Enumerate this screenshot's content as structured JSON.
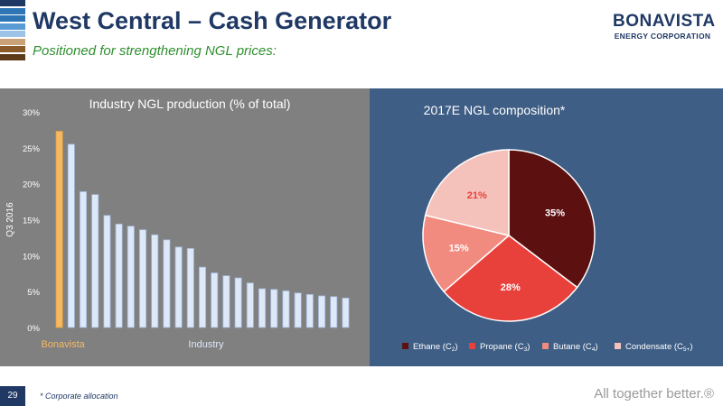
{
  "header": {
    "title": "West Central – Cash Generator",
    "subtitle": "Positioned for strengthening NGL prices:"
  },
  "logo": {
    "brand": "BONAVISTA",
    "sub": "ENERGY CORPORATION",
    "stripe_colors": [
      "#1f3864",
      "#2e75b6",
      "#2e75b6",
      "#5b9bd5",
      "#9dc3e6",
      "#c9a27a",
      "#8b5a2b",
      "#5c3a1a"
    ]
  },
  "footer": {
    "page_number": "29",
    "footnote": "* Corporate allocation",
    "tagline": "All together better.®"
  },
  "chart_data": [
    {
      "type": "bar",
      "title": "Industry NGL production (% of total)",
      "ylabel": "Q3 2016",
      "ylim": [
        0,
        30
      ],
      "yticks": [
        "0%",
        "5%",
        "10%",
        "15%",
        "20%",
        "25%",
        "30%"
      ],
      "grid": false,
      "group_labels": [
        "Bonavista",
        "Industry"
      ],
      "colors": {
        "highlight": "#f4b962",
        "bar": "#dde8f8",
        "bar_edge": "#9fb4d6"
      },
      "values": [
        27.3,
        25.5,
        18.9,
        18.5,
        15.6,
        14.4,
        14.1,
        13.6,
        12.9,
        12.2,
        11.2,
        11.0,
        8.4,
        7.6,
        7.2,
        6.9,
        6.2,
        5.4,
        5.3,
        5.1,
        4.8,
        4.6,
        4.4,
        4.3,
        4.1
      ]
    },
    {
      "type": "pie",
      "title": "2017E NGL composition*",
      "categories": [
        "Ethane (C2)",
        "Propane (C3)",
        "Butane (C4)",
        "Condensate (C5+)"
      ],
      "legend": [
        {
          "base": "Ethane (C",
          "sub": "2",
          "end": ")"
        },
        {
          "base": "Propane (C",
          "sub": "3",
          "end": ")"
        },
        {
          "base": "Butane (C",
          "sub": "4",
          "end": ")"
        },
        {
          "base": "Condensate (C",
          "sub": "5+",
          "end": ")"
        }
      ],
      "values": [
        35,
        28,
        15,
        21
      ],
      "labels": [
        "35%",
        "28%",
        "15%",
        "21%"
      ],
      "colors": [
        "#5c1010",
        "#e8413c",
        "#f28b7f",
        "#f5c1bb"
      ],
      "legend_position": "bottom"
    }
  ]
}
